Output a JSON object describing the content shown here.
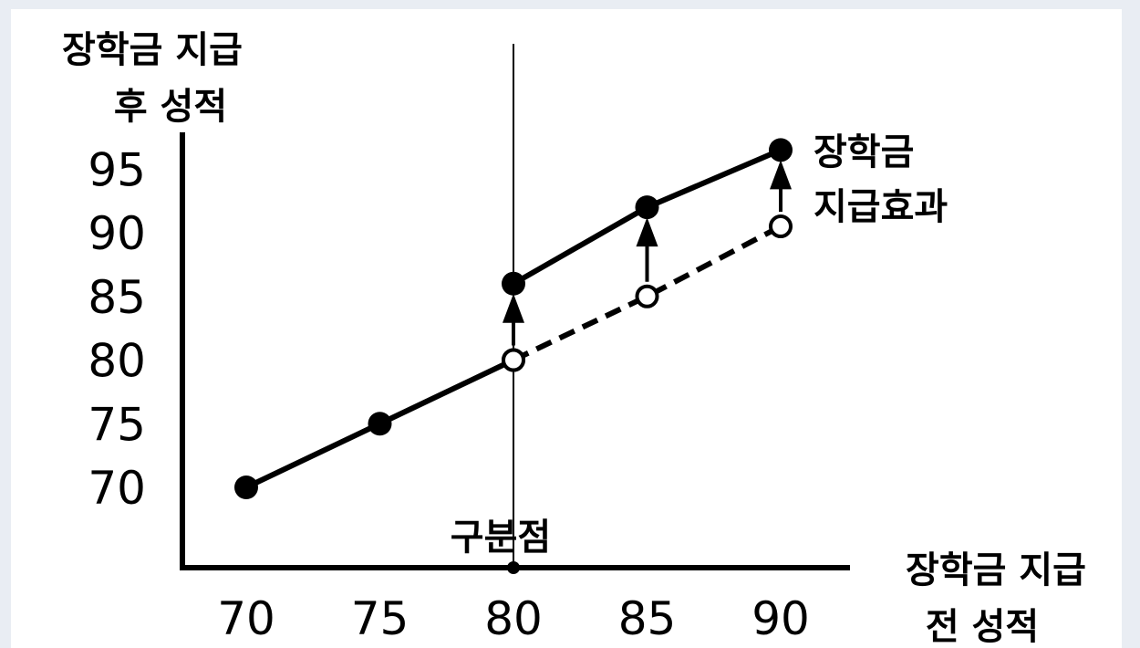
{
  "chart_data": {
    "type": "line",
    "ylabel": [
      "장학금 지급",
      "후 성적"
    ],
    "xlabel": [
      "장학금 지급",
      "전 성적"
    ],
    "xticks": [
      70,
      75,
      80,
      85,
      90
    ],
    "yticks": [
      70,
      75,
      80,
      85,
      90,
      95
    ],
    "cutoff": {
      "x": 80,
      "label": "구분점"
    },
    "effect_label": [
      "장학금",
      "지급효과"
    ],
    "series": [
      {
        "style": "solid-filled",
        "x": [
          70,
          75,
          80
        ],
        "y": [
          70,
          75,
          80
        ],
        "segment": "below-cutoff"
      },
      {
        "style": "solid-filled",
        "x": [
          80,
          85,
          90
        ],
        "y": [
          86,
          92,
          96.5
        ],
        "segment": "above-cutoff"
      },
      {
        "style": "dashed-open",
        "x": [
          80,
          85,
          90
        ],
        "y": [
          80,
          85,
          90.5
        ],
        "segment": "counterfactual"
      }
    ],
    "arrows": [
      {
        "x": 80,
        "from": 80,
        "to": 86
      },
      {
        "x": 85,
        "from": 85,
        "to": 92
      },
      {
        "x": 90,
        "from": 90.5,
        "to": 96.5
      }
    ],
    "first_point_y": 80,
    "legend": "none",
    "grid": false
  }
}
